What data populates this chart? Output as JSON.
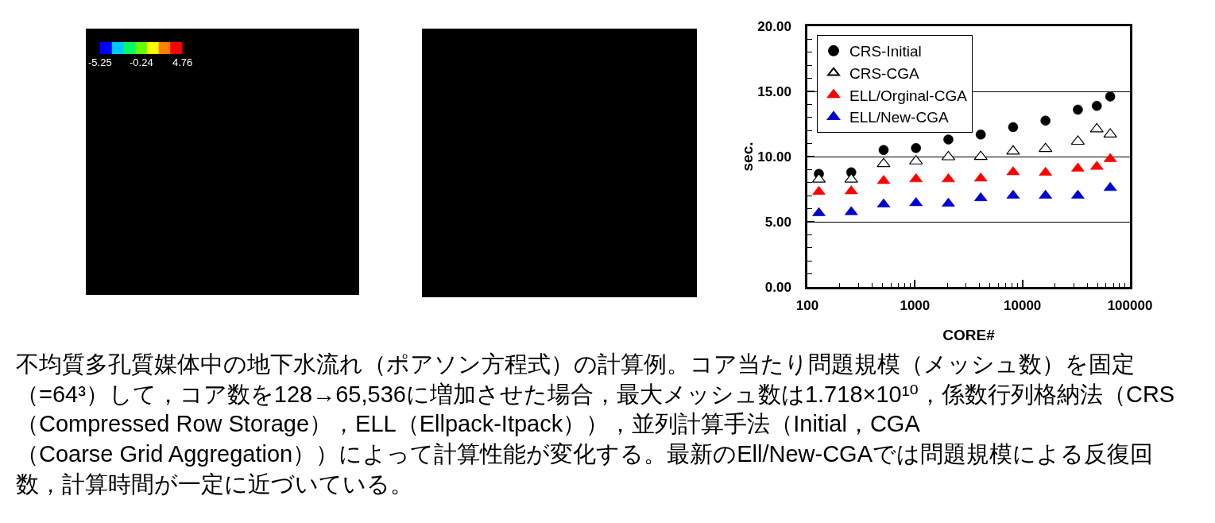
{
  "chart_data": {
    "type": "scatter",
    "xlabel": "CORE#",
    "ylabel": "sec.",
    "log": "x",
    "grid": "y",
    "legend": "top left",
    "x": [
      128,
      256,
      512,
      1024,
      2048,
      4096,
      8192,
      16384,
      32768,
      49152,
      65536
    ],
    "xlim": [
      100,
      100000
    ],
    "xticks": [
      100,
      {
        "value": 200,
        "label": null
      },
      {
        "value": 300,
        "label": null
      },
      {
        "value": 400,
        "label": null
      },
      {
        "value": 500,
        "label": null
      },
      {
        "value": 600,
        "label": null
      },
      {
        "value": 700,
        "label": null
      },
      {
        "value": 800,
        "label": null
      },
      {
        "value": 900,
        "label": null
      },
      1000,
      {
        "value": 2000,
        "label": null
      },
      {
        "value": 3000,
        "label": null
      },
      {
        "value": 4000,
        "label": null
      },
      {
        "value": 5000,
        "label": null
      },
      {
        "value": 6000,
        "label": null
      },
      {
        "value": 7000,
        "label": null
      },
      {
        "value": 8000,
        "label": null
      },
      {
        "value": 9000,
        "label": null
      },
      10000,
      {
        "value": 20000,
        "label": null
      },
      {
        "value": 30000,
        "label": null
      },
      {
        "value": 40000,
        "label": null
      },
      {
        "value": 50000,
        "label": null
      },
      {
        "value": 60000,
        "label": null
      },
      {
        "value": 70000,
        "label": null
      },
      {
        "value": 80000,
        "label": null
      },
      {
        "value": 90000,
        "label": null
      },
      100000
    ],
    "ylim": [
      0,
      20
    ],
    "yticks": [
      {
        "value": 0,
        "label": "0.00"
      },
      {
        "value": 1,
        "label": null
      },
      {
        "value": 2,
        "label": null
      },
      {
        "value": 3,
        "label": null
      },
      {
        "value": 4,
        "label": null
      },
      {
        "value": 5,
        "label": "5.00"
      },
      {
        "value": 6,
        "label": null
      },
      {
        "value": 7,
        "label": null
      },
      {
        "value": 8,
        "label": null
      },
      {
        "value": 9,
        "label": null
      },
      {
        "value": 10,
        "label": "10.00"
      },
      {
        "value": 11,
        "label": null
      },
      {
        "value": 12,
        "label": null
      },
      {
        "value": 13,
        "label": null
      },
      {
        "value": 14,
        "label": null
      },
      {
        "value": 15,
        "label": "15.00"
      },
      {
        "value": 16,
        "label": null
      },
      {
        "value": 17,
        "label": null
      },
      {
        "value": 18,
        "label": null
      },
      {
        "value": 19,
        "label": null
      },
      {
        "value": 20,
        "label": "20.00"
      }
    ],
    "series": [
      {
        "name": "CRS-Initial",
        "color": "#000000",
        "marker": "circle",
        "values": [
          8.67,
          8.79,
          10.51,
          10.66,
          11.31,
          11.69,
          12.26,
          12.76,
          13.6,
          13.89,
          14.61
        ]
      },
      {
        "name": "CRS-CGA",
        "color": "#000000",
        "marker": "triangle-open",
        "values": [
          8.25,
          8.25,
          9.44,
          9.65,
          9.97,
          9.99,
          10.41,
          10.6,
          11.16,
          12.11,
          11.71
        ]
      },
      {
        "name": "ELL/Orginal-CGA",
        "color": "#ff0000",
        "marker": "triangle",
        "values": [
          7.3,
          7.35,
          8.14,
          8.27,
          8.27,
          8.33,
          8.81,
          8.77,
          9.09,
          9.23,
          9.82
        ]
      },
      {
        "name": "ELL/New-CGA",
        "color": "#0000cc",
        "marker": "triangle",
        "values": [
          5.67,
          5.75,
          6.34,
          6.44,
          6.4,
          6.82,
          7.01,
          7.01,
          7.01,
          null,
          7.6
        ]
      }
    ],
    "annotations": [
      "-5.25",
      "-0.24",
      "4.76",
      "不均質多孔質媒体中の地下水流れ（ポアソン方程式）の計算例。コア当たり問題規模（メッシュ数）を固定（=64³）して，コア数を128→65,536に増加させた場合，最大メッシュ数は1.718×10¹⁰，係数行列格納法（CRS（Compressed Row Storage），ELL（Ellpack-Itpack）），並列計算手法（Initial，CGA（Coarse Grid Aggregation））によって計算性能が変化する。最新のEll/New-CGAでは問題規模による反復回数，計算時間が一定に近づいている。"
    ]
  }
}
